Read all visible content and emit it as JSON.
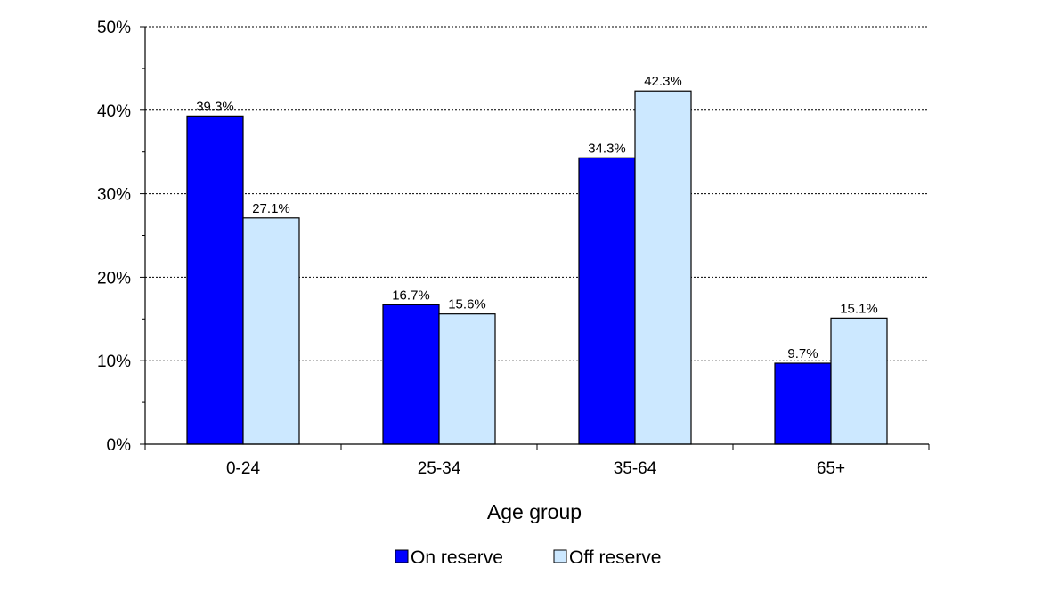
{
  "chart_data": {
    "type": "bar",
    "title": "",
    "xlabel": "Age group",
    "ylabel": "",
    "categories": [
      "0-24",
      "25-34",
      "35-64",
      "65+"
    ],
    "series": [
      {
        "name": "On reserve",
        "values": [
          39.3,
          16.7,
          34.3,
          9.7
        ],
        "color": "#0000ff"
      },
      {
        "name": "Off reserve",
        "values": [
          27.1,
          15.6,
          42.3,
          15.1
        ],
        "color": "#cce8ff"
      }
    ],
    "data_labels": [
      [
        "39.3%",
        "16.7%",
        "34.3%",
        "9.7%"
      ],
      [
        "27.1%",
        "15.6%",
        "42.3%",
        "15.1%"
      ]
    ],
    "ylim": [
      0,
      50
    ],
    "yticks": [
      0,
      10,
      20,
      30,
      40,
      50
    ],
    "ytick_labels": [
      "0%",
      "10%",
      "20%",
      "30%",
      "40%",
      "50%"
    ],
    "grid": true,
    "grid_style": "dotted",
    "legend_position": "bottom"
  }
}
